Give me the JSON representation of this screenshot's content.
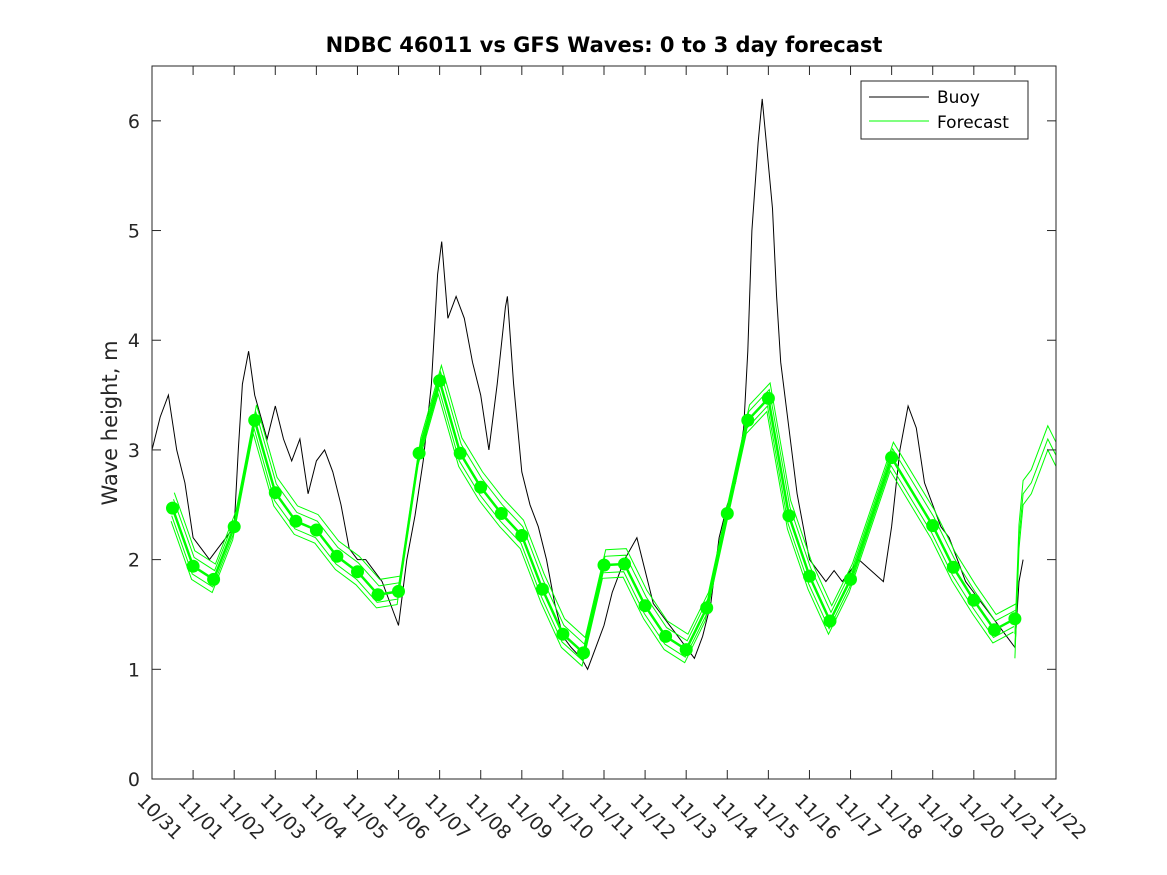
{
  "chart_data": {
    "type": "line",
    "title": "NDBC 46011 vs GFS Waves: 0 to 3 day forecast",
    "xlabel": "",
    "ylabel": "Wave height, m",
    "ylim": [
      0,
      6.5
    ],
    "yticks": [
      0,
      1,
      2,
      3,
      4,
      5,
      6
    ],
    "xlim_days": [
      0,
      22
    ],
    "xtick_labels": [
      "10/31",
      "11/01",
      "11/02",
      "11/03",
      "11/04",
      "11/05",
      "11/06",
      "11/07",
      "11/08",
      "11/09",
      "11/10",
      "11/11",
      "11/12",
      "11/13",
      "11/14",
      "11/15",
      "11/16",
      "11/17",
      "11/18",
      "11/19",
      "11/20",
      "11/21",
      "11/22"
    ],
    "grid": false,
    "legend": {
      "position": "top-right",
      "entries": [
        "Buoy",
        "Forecast"
      ]
    },
    "colors": {
      "buoy": "#000000",
      "forecast": "#00ff00",
      "axes": "#262626"
    },
    "series": [
      {
        "name": "Buoy",
        "x_days": [
          0,
          0.2,
          0.4,
          0.6,
          0.8,
          1.0,
          1.2,
          1.4,
          1.6,
          1.8,
          2.0,
          2.1,
          2.2,
          2.35,
          2.5,
          2.65,
          2.8,
          3.0,
          3.2,
          3.4,
          3.6,
          3.8,
          4.0,
          4.2,
          4.4,
          4.6,
          4.8,
          5.0,
          5.2,
          5.4,
          5.6,
          5.8,
          5.9,
          6.0,
          6.2,
          6.4,
          6.6,
          6.8,
          6.95,
          7.05,
          7.2,
          7.4,
          7.6,
          7.8,
          8.0,
          8.2,
          8.4,
          8.6,
          8.65,
          8.8,
          9.0,
          9.2,
          9.4,
          9.6,
          9.8,
          10.0,
          10.2,
          10.45,
          10.6,
          10.8,
          11.0,
          11.2,
          11.5,
          11.8,
          12.0,
          12.2,
          12.4,
          12.6,
          12.8,
          13.0,
          13.2,
          13.4,
          13.6,
          13.8,
          14.0,
          14.2,
          14.4,
          14.5,
          14.6,
          14.75,
          14.85,
          15.0,
          15.1,
          15.2,
          15.3,
          15.5,
          15.7,
          15.9,
          16.0,
          16.2,
          16.4,
          16.6,
          16.8,
          17.0,
          17.2,
          17.5,
          17.8,
          18.0,
          18.2,
          18.4,
          18.6,
          18.8,
          19.0,
          19.2,
          19.4,
          19.6,
          19.8,
          20.0,
          20.2,
          20.4,
          20.6,
          20.8,
          21.0,
          21.1,
          21.2
        ],
        "values": [
          3.0,
          3.3,
          3.5,
          3.0,
          2.7,
          2.2,
          2.1,
          2.0,
          2.1,
          2.2,
          2.3,
          3.0,
          3.6,
          3.9,
          3.5,
          3.3,
          3.1,
          3.4,
          3.1,
          2.9,
          3.1,
          2.6,
          2.9,
          3.0,
          2.8,
          2.5,
          2.1,
          2.0,
          2.0,
          1.9,
          1.8,
          1.6,
          1.5,
          1.4,
          2.0,
          2.4,
          2.9,
          3.6,
          4.6,
          4.9,
          4.2,
          4.4,
          4.2,
          3.8,
          3.5,
          3.0,
          3.6,
          4.3,
          4.4,
          3.6,
          2.8,
          2.5,
          2.3,
          2.0,
          1.6,
          1.3,
          1.2,
          1.1,
          1.0,
          1.2,
          1.4,
          1.7,
          2.0,
          2.2,
          1.9,
          1.6,
          1.5,
          1.4,
          1.3,
          1.2,
          1.1,
          1.3,
          1.6,
          2.2,
          2.5,
          2.7,
          3.2,
          3.9,
          5.0,
          5.8,
          6.2,
          5.6,
          5.2,
          4.4,
          3.8,
          3.2,
          2.6,
          2.2,
          2.0,
          1.9,
          1.8,
          1.9,
          1.8,
          1.9,
          2.0,
          1.9,
          1.8,
          2.3,
          3.0,
          3.4,
          3.2,
          2.7,
          2.5,
          2.3,
          2.2,
          2.0,
          1.8,
          1.7,
          1.6,
          1.5,
          1.4,
          1.3,
          1.2,
          1.8,
          2.0
        ]
      },
      {
        "name": "Forecast",
        "markers": true,
        "x_days": [
          0.5,
          1.0,
          1.5,
          2.0,
          2.5,
          3.0,
          3.5,
          4.0,
          4.5,
          5.0,
          5.5,
          6.0,
          6.5,
          7.0,
          7.5,
          8.0,
          8.5,
          9.0,
          9.5,
          10.0,
          10.5,
          11.0,
          11.5,
          12.0,
          12.5,
          13.0,
          13.5,
          14.0,
          14.5,
          15.0,
          15.5,
          16.0,
          16.5,
          17.0,
          18.0,
          19.0,
          19.5,
          20.0,
          20.5,
          21.0
        ],
        "values": [
          2.47,
          1.94,
          1.82,
          2.3,
          3.27,
          2.61,
          2.35,
          2.27,
          2.03,
          1.89,
          1.68,
          1.71,
          2.97,
          3.63,
          2.97,
          2.66,
          2.42,
          2.22,
          1.73,
          1.32,
          1.15,
          1.95,
          1.96,
          1.58,
          1.3,
          1.18,
          1.56,
          2.42,
          3.27,
          3.47,
          2.4,
          1.85,
          1.44,
          1.82,
          2.93,
          2.31,
          1.93,
          1.63,
          1.36,
          1.46
        ],
        "ensemble_offsets": [
          0,
          0.08,
          -0.07,
          0.14,
          -0.12
        ]
      },
      {
        "name": "Forecast (tail)",
        "x_days": [
          21.0,
          21.1,
          21.2,
          21.4,
          21.6,
          21.8,
          22.0
        ],
        "values": [
          1.2,
          2.2,
          2.6,
          2.7,
          2.9,
          3.1,
          2.95
        ]
      }
    ]
  }
}
